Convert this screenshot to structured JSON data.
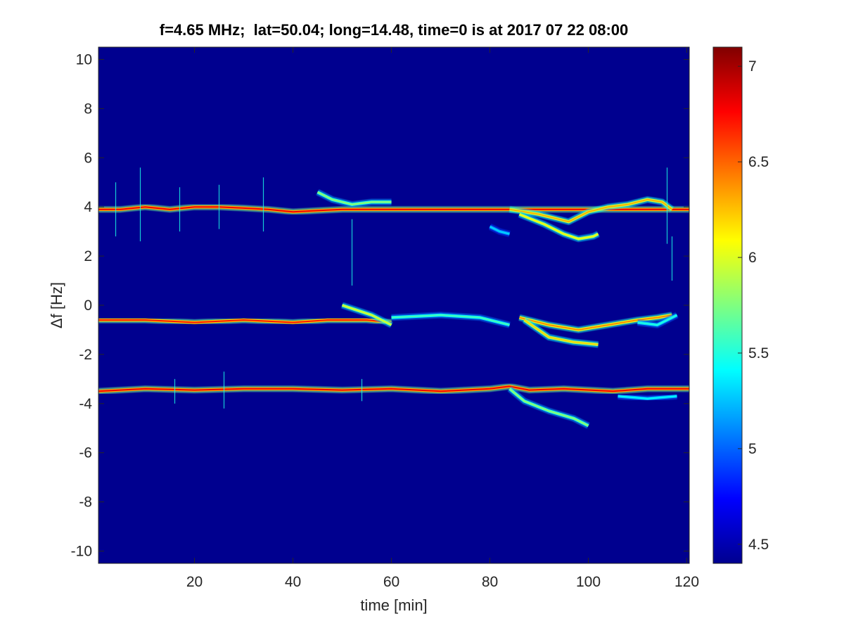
{
  "chart_data": {
    "type": "heatmap",
    "title": "f=4.65 MHz;  lat=50.04; long=14.48, time=0 is at 2017 07 22 08:00",
    "xlabel": "time [min]",
    "ylabel": "Δf [Hz]",
    "xlim": [
      0.5,
      120.5
    ],
    "ylim": [
      -10.5,
      10.5
    ],
    "x_ticks": [
      20,
      40,
      60,
      80,
      100,
      120
    ],
    "y_ticks": [
      10,
      8,
      6,
      4,
      2,
      0,
      -2,
      -4,
      -6,
      -8,
      -10
    ],
    "x_tick_labels": [
      "20",
      "40",
      "60",
      "80",
      "100",
      "120"
    ],
    "y_tick_labels": [
      "10",
      "8",
      "6",
      "4",
      "2",
      "0",
      "-2",
      "-4",
      "-6",
      "-8",
      "-10"
    ],
    "colorbar": {
      "colormap": "jet",
      "range": [
        4.4,
        7.1
      ],
      "ticks": [
        4.5,
        5,
        5.5,
        6,
        6.5,
        7
      ],
      "tick_labels": [
        "4.5",
        "5",
        "5.5",
        "6",
        "6.5",
        "7"
      ]
    },
    "background_level": 4.45,
    "traces": [
      {
        "points": [
          [
            0.5,
            3.9
          ],
          [
            5,
            3.9
          ],
          [
            10,
            4.0
          ],
          [
            15,
            3.9
          ],
          [
            20,
            4.0
          ],
          [
            25,
            4.0
          ],
          [
            30,
            3.95
          ],
          [
            35,
            3.9
          ],
          [
            40,
            3.8
          ],
          [
            45,
            3.85
          ],
          [
            50,
            3.9
          ],
          [
            60,
            3.9
          ],
          [
            70,
            3.9
          ],
          [
            80,
            3.9
          ],
          [
            90,
            3.9
          ],
          [
            100,
            3.9
          ],
          [
            110,
            3.9
          ],
          [
            120.5,
            3.9
          ]
        ],
        "level": 6.8
      },
      {
        "points": [
          [
            45,
            4.6
          ],
          [
            48,
            4.3
          ],
          [
            52,
            4.1
          ],
          [
            56,
            4.2
          ],
          [
            60,
            4.2
          ]
        ],
        "level": 5.8
      },
      {
        "points": [
          [
            84,
            3.9
          ],
          [
            90,
            3.7
          ],
          [
            96,
            3.4
          ],
          [
            100,
            3.8
          ],
          [
            104,
            4.0
          ],
          [
            108,
            4.1
          ],
          [
            112,
            4.3
          ],
          [
            115,
            4.2
          ],
          [
            117,
            3.9
          ]
        ],
        "level": 6.3
      },
      {
        "points": [
          [
            86,
            3.7
          ],
          [
            91,
            3.3
          ],
          [
            95,
            2.9
          ],
          [
            98,
            2.7
          ],
          [
            101,
            2.8
          ],
          [
            102,
            2.9
          ]
        ],
        "level": 6.1
      },
      {
        "points": [
          [
            80,
            3.2
          ],
          [
            82,
            3.0
          ],
          [
            84,
            2.9
          ]
        ],
        "level": 5.3
      },
      {
        "points": [
          [
            0.5,
            -0.6
          ],
          [
            10,
            -0.6
          ],
          [
            20,
            -0.7
          ],
          [
            30,
            -0.6
          ],
          [
            40,
            -0.7
          ],
          [
            47,
            -0.6
          ],
          [
            55,
            -0.6
          ],
          [
            60,
            -0.7
          ]
        ],
        "level": 6.7
      },
      {
        "points": [
          [
            50,
            0.0
          ],
          [
            53,
            -0.2
          ],
          [
            56,
            -0.4
          ],
          [
            60,
            -0.8
          ]
        ],
        "level": 6.0
      },
      {
        "points": [
          [
            60,
            -0.5
          ],
          [
            70,
            -0.4
          ],
          [
            78,
            -0.5
          ],
          [
            84,
            -0.8
          ]
        ],
        "level": 5.6
      },
      {
        "points": [
          [
            86,
            -0.5
          ],
          [
            92,
            -0.8
          ],
          [
            98,
            -1.0
          ],
          [
            104,
            -0.8
          ],
          [
            110,
            -0.6
          ],
          [
            114,
            -0.5
          ],
          [
            117,
            -0.4
          ]
        ],
        "level": 6.4
      },
      {
        "points": [
          [
            87,
            -0.6
          ],
          [
            92,
            -1.3
          ],
          [
            97,
            -1.5
          ],
          [
            102,
            -1.6
          ]
        ],
        "level": 6.2
      },
      {
        "points": [
          [
            110,
            -0.7
          ],
          [
            114,
            -0.8
          ],
          [
            116,
            -0.6
          ],
          [
            118,
            -0.4
          ]
        ],
        "level": 5.5
      },
      {
        "points": [
          [
            0.5,
            -3.5
          ],
          [
            10,
            -3.4
          ],
          [
            20,
            -3.45
          ],
          [
            30,
            -3.4
          ],
          [
            40,
            -3.4
          ],
          [
            50,
            -3.45
          ],
          [
            60,
            -3.4
          ],
          [
            70,
            -3.5
          ],
          [
            80,
            -3.4
          ],
          [
            84,
            -3.3
          ],
          [
            88,
            -3.45
          ],
          [
            95,
            -3.4
          ],
          [
            105,
            -3.5
          ],
          [
            112,
            -3.4
          ],
          [
            120.5,
            -3.4
          ]
        ],
        "level": 6.8
      },
      {
        "points": [
          [
            84,
            -3.4
          ],
          [
            87,
            -3.9
          ],
          [
            92,
            -4.3
          ],
          [
            97,
            -4.6
          ],
          [
            100,
            -4.9
          ]
        ],
        "level": 5.8
      },
      {
        "points": [
          [
            106,
            -3.7
          ],
          [
            112,
            -3.8
          ],
          [
            118,
            -3.7
          ]
        ],
        "level": 5.4
      }
    ],
    "spikes": [
      {
        "x": 4,
        "y0": 2.8,
        "y1": 5.0
      },
      {
        "x": 9,
        "y0": 2.6,
        "y1": 5.6
      },
      {
        "x": 17,
        "y0": 3.0,
        "y1": 4.8
      },
      {
        "x": 25,
        "y0": 3.1,
        "y1": 4.9
      },
      {
        "x": 34,
        "y0": 3.0,
        "y1": 5.2
      },
      {
        "x": 52,
        "y0": 0.8,
        "y1": 3.5
      },
      {
        "x": 116,
        "y0": 2.5,
        "y1": 5.6
      },
      {
        "x": 117,
        "y0": 1.0,
        "y1": 2.8
      },
      {
        "x": 26,
        "y0": -4.2,
        "y1": -2.7
      },
      {
        "x": 16,
        "y0": -4.0,
        "y1": -3.0
      },
      {
        "x": 54,
        "y0": -3.9,
        "y1": -3.0
      }
    ]
  }
}
